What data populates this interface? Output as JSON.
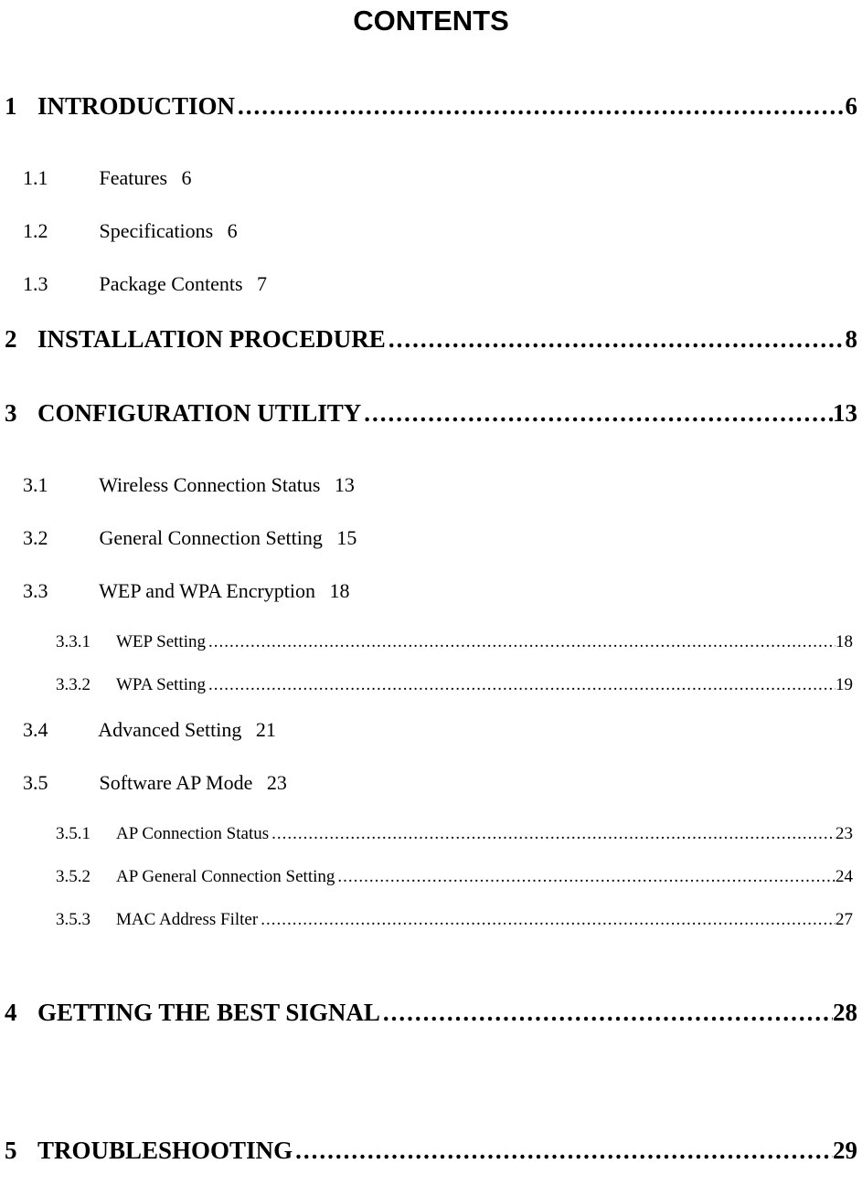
{
  "title": "CONTENTS",
  "leader": "........................................................................................................................................................................................",
  "leader_small": "........................................................................................................................................................................................",
  "sections": {
    "s1": {
      "num": "1",
      "title": "INTRODUCTION",
      "page": "6"
    },
    "s1_1": {
      "num": "1.1",
      "title": "Features",
      "page": "6"
    },
    "s1_2": {
      "num": "1.2",
      "title": "Specifications",
      "page": "6"
    },
    "s1_3": {
      "num": "1.3",
      "title": "Package Contents",
      "page": "7"
    },
    "s2": {
      "num": "2",
      "title": "INSTALLATION PROCEDURE",
      "page": "8"
    },
    "s3": {
      "num": "3",
      "title": "CONFIGURATION UTILITY",
      "page": "13"
    },
    "s3_1": {
      "num": "3.1",
      "title": "Wireless Connection Status",
      "page": "13"
    },
    "s3_2": {
      "num": "3.2",
      "title": "General Connection Setting",
      "page": "15"
    },
    "s3_3": {
      "num": "3.3",
      "title": "WEP and WPA Encryption",
      "page": "18"
    },
    "s3_3_1": {
      "num": "3.3.1",
      "title": "WEP Setting",
      "page": "18"
    },
    "s3_3_2": {
      "num": "3.3.2",
      "title": "WPA Setting",
      "page": "19"
    },
    "s3_4": {
      "num": "3.4",
      "title": "Advanced Setting",
      "page": "21"
    },
    "s3_5": {
      "num": "3.5",
      "title": "Software AP Mode",
      "page": "23"
    },
    "s3_5_1": {
      "num": "3.5.1",
      "title": "AP Connection Status",
      "page": "23"
    },
    "s3_5_2": {
      "num": "3.5.2",
      "title": "AP General Connection Setting",
      "page": "24"
    },
    "s3_5_3": {
      "num": "3.5.3",
      "title": "MAC Address Filter",
      "page": "27"
    },
    "s4": {
      "num": "4",
      "title": "GETTING THE BEST SIGNAL",
      "page": "28"
    },
    "s5": {
      "num": "5",
      "title": "TROUBLESHOOTING",
      "page": "29"
    }
  }
}
